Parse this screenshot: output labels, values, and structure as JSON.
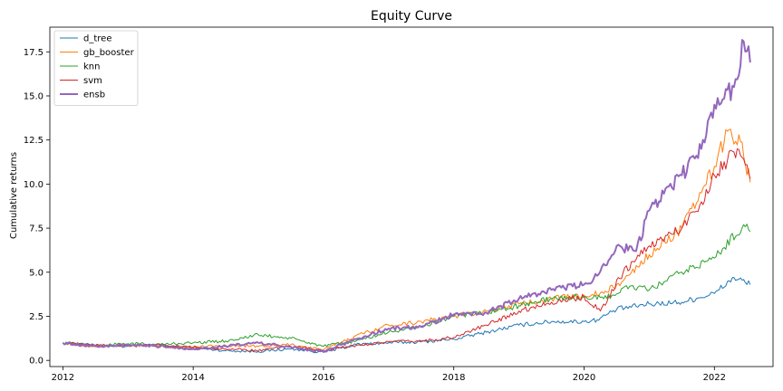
{
  "chart_data": {
    "type": "line",
    "title": "Equity Curve",
    "xlabel": "",
    "ylabel": "Cumulative returns",
    "xlim": [
      2011.8,
      2022.9
    ],
    "ylim": [
      -0.35,
      18.9
    ],
    "x_ticks": [
      2012,
      2014,
      2016,
      2018,
      2020,
      2022
    ],
    "x_tick_labels": [
      "2012",
      "2014",
      "2016",
      "2018",
      "2020",
      "2022"
    ],
    "y_ticks": [
      0,
      2.5,
      5,
      7.5,
      10,
      12.5,
      15,
      17.5
    ],
    "y_tick_labels": [
      "0.0",
      "2.5",
      "5.0",
      "7.5",
      "10.0",
      "12.5",
      "15.0",
      "17.5"
    ],
    "grid": false,
    "legend_position": "top-left",
    "series": [
      {
        "name": "d_tree",
        "color": "#1f77b4",
        "width": 1,
        "x": [
          2012.0,
          2012.5,
          2013.0,
          2013.5,
          2014.0,
          2014.5,
          2015.0,
          2015.5,
          2016.0,
          2016.5,
          2017.0,
          2017.5,
          2018.0,
          2018.5,
          2019.0,
          2019.5,
          2020.0,
          2020.2,
          2020.5,
          2021.0,
          2021.5,
          2022.0,
          2022.3,
          2022.55
        ],
        "y": [
          1.0,
          0.85,
          0.8,
          0.85,
          0.7,
          0.55,
          0.5,
          0.65,
          0.45,
          0.9,
          1.0,
          1.05,
          1.2,
          1.6,
          2.0,
          2.2,
          2.2,
          2.3,
          2.9,
          3.2,
          3.3,
          3.8,
          4.7,
          4.3
        ]
      },
      {
        "name": "gb_booster",
        "color": "#ff7f0e",
        "width": 1,
        "x": [
          2012.0,
          2012.5,
          2013.0,
          2013.5,
          2014.0,
          2014.5,
          2015.0,
          2015.5,
          2016.0,
          2016.5,
          2017.0,
          2017.5,
          2018.0,
          2018.5,
          2019.0,
          2019.5,
          2020.0,
          2020.3,
          2020.6,
          2021.0,
          2021.5,
          2021.8,
          2022.0,
          2022.2,
          2022.4,
          2022.55
        ],
        "y": [
          1.0,
          0.8,
          0.85,
          0.8,
          0.75,
          0.85,
          0.8,
          0.9,
          0.6,
          1.4,
          2.0,
          2.2,
          2.5,
          2.8,
          3.2,
          3.5,
          3.7,
          3.8,
          4.5,
          6.0,
          7.5,
          9.5,
          11.0,
          13.0,
          12.4,
          10.1
        ]
      },
      {
        "name": "knn",
        "color": "#2ca02c",
        "width": 1,
        "x": [
          2012.0,
          2012.5,
          2013.0,
          2013.5,
          2014.0,
          2014.5,
          2015.0,
          2015.5,
          2016.0,
          2016.5,
          2017.0,
          2017.5,
          2018.0,
          2018.5,
          2019.0,
          2019.5,
          2020.0,
          2020.3,
          2020.7,
          2021.0,
          2021.5,
          2022.0,
          2022.45,
          2022.55
        ],
        "y": [
          1.0,
          0.85,
          0.95,
          0.9,
          1.0,
          1.1,
          1.45,
          1.25,
          0.8,
          1.1,
          1.6,
          1.9,
          2.5,
          2.7,
          3.1,
          3.5,
          3.6,
          3.5,
          4.2,
          4.0,
          5.0,
          5.8,
          7.7,
          7.3
        ]
      },
      {
        "name": "svm",
        "color": "#d62728",
        "width": 1,
        "x": [
          2012.0,
          2012.5,
          2013.0,
          2013.5,
          2014.0,
          2014.5,
          2015.0,
          2015.5,
          2016.0,
          2016.5,
          2017.0,
          2017.5,
          2018.0,
          2018.5,
          2019.0,
          2019.5,
          2020.0,
          2020.25,
          2020.6,
          2021.0,
          2021.5,
          2021.8,
          2022.0,
          2022.35,
          2022.55
        ],
        "y": [
          1.0,
          0.85,
          0.85,
          0.85,
          0.75,
          0.65,
          0.55,
          0.8,
          0.55,
          0.85,
          1.05,
          1.1,
          1.3,
          2.0,
          2.8,
          3.3,
          3.6,
          2.8,
          5.0,
          6.5,
          7.5,
          9.0,
          10.5,
          12.0,
          10.3
        ]
      },
      {
        "name": "ensb",
        "color": "#9467bd",
        "width": 2,
        "x": [
          2012.0,
          2012.5,
          2013.0,
          2013.5,
          2014.0,
          2014.5,
          2015.0,
          2015.5,
          2016.0,
          2016.5,
          2017.0,
          2017.5,
          2018.0,
          2018.5,
          2019.0,
          2019.5,
          2020.0,
          2020.2,
          2020.5,
          2020.8,
          2021.0,
          2021.5,
          2021.8,
          2022.0,
          2022.3,
          2022.45,
          2022.55
        ],
        "y": [
          1.0,
          0.8,
          0.85,
          0.8,
          0.65,
          0.8,
          1.0,
          0.75,
          0.5,
          1.2,
          1.8,
          1.9,
          2.6,
          2.7,
          3.5,
          4.0,
          4.3,
          4.8,
          6.5,
          6.2,
          8.5,
          10.5,
          12.0,
          14.5,
          15.5,
          18.1,
          16.9
        ]
      }
    ]
  }
}
